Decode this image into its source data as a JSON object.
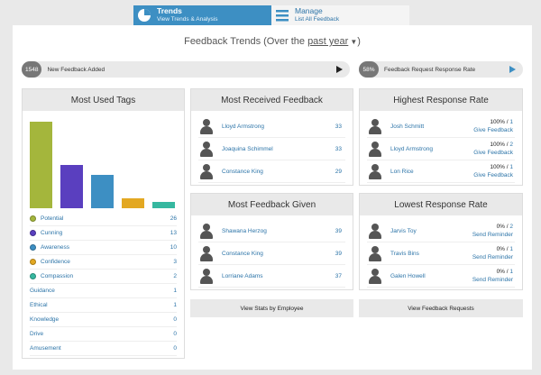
{
  "nav": {
    "trends": {
      "title": "Trends",
      "sub": "View Trends & Analysis"
    },
    "manage": {
      "title": "Manage",
      "sub": "List All Feedback"
    }
  },
  "page": {
    "title_prefix": "Feedback Trends (Over the",
    "period": "past year",
    "title_suffix": ")"
  },
  "strips": {
    "new_count": "1548",
    "new_label": "New Feedback Added",
    "rate_count": "58%",
    "rate_label": "Feedback Request Response Rate"
  },
  "tags": {
    "title": "Most Used Tags",
    "chart_data": {
      "type": "bar",
      "categories": [
        "Potential",
        "Cunning",
        "Awareness",
        "Confidence",
        "Compassion"
      ],
      "values": [
        26,
        13,
        10,
        3,
        2
      ],
      "colors": [
        "#a4b63c",
        "#5a3fbf",
        "#3d8fc3",
        "#e3a822",
        "#36b8a0"
      ]
    },
    "items": [
      {
        "name": "Potential",
        "value": "26",
        "color": "#a4b63c"
      },
      {
        "name": "Cunning",
        "value": "13",
        "color": "#5a3fbf"
      },
      {
        "name": "Awareness",
        "value": "10",
        "color": "#3d8fc3"
      },
      {
        "name": "Confidence",
        "value": "3",
        "color": "#e3a822"
      },
      {
        "name": "Compassion",
        "value": "2",
        "color": "#36b8a0"
      },
      {
        "name": "Guidance",
        "value": "1"
      },
      {
        "name": "Ethical",
        "value": "1"
      },
      {
        "name": "Knowledge",
        "value": "0"
      },
      {
        "name": "Drive",
        "value": "0"
      },
      {
        "name": "Amusement",
        "value": "0"
      }
    ]
  },
  "received": {
    "title": "Most Received Feedback",
    "rows": [
      {
        "name": "Lloyd Armstrong",
        "value": "33"
      },
      {
        "name": "Joaquina Schimmel",
        "value": "33"
      },
      {
        "name": "Constance King",
        "value": "29"
      }
    ]
  },
  "given": {
    "title": "Most Feedback Given",
    "rows": [
      {
        "name": "Shawana Herzog",
        "value": "39"
      },
      {
        "name": "Constance King",
        "value": "39"
      },
      {
        "name": "Lorriane Adams",
        "value": "37"
      }
    ]
  },
  "highest": {
    "title": "Highest Response Rate",
    "rows": [
      {
        "name": "Josh Schmitt",
        "rate": "100% / ",
        "total": "1",
        "action": "Give Feedback"
      },
      {
        "name": "Lloyd Armstrong",
        "rate": "100% / ",
        "total": "2",
        "action": "Give Feedback"
      },
      {
        "name": "Lon Rice",
        "rate": "100% / ",
        "total": "1",
        "action": "Give Feedback"
      }
    ]
  },
  "lowest": {
    "title": "Lowest Response Rate",
    "rows": [
      {
        "name": "Jarvis Toy",
        "rate": "0% / ",
        "total": "2",
        "action": "Send Reminder"
      },
      {
        "name": "Travis Bins",
        "rate": "0% / ",
        "total": "1",
        "action": "Send Reminder"
      },
      {
        "name": "Galen Howell",
        "rate": "0% / ",
        "total": "1",
        "action": "Send Reminder"
      }
    ]
  },
  "buttons": {
    "stats": "View Stats by Employee",
    "requests": "View Feedback Requests"
  }
}
